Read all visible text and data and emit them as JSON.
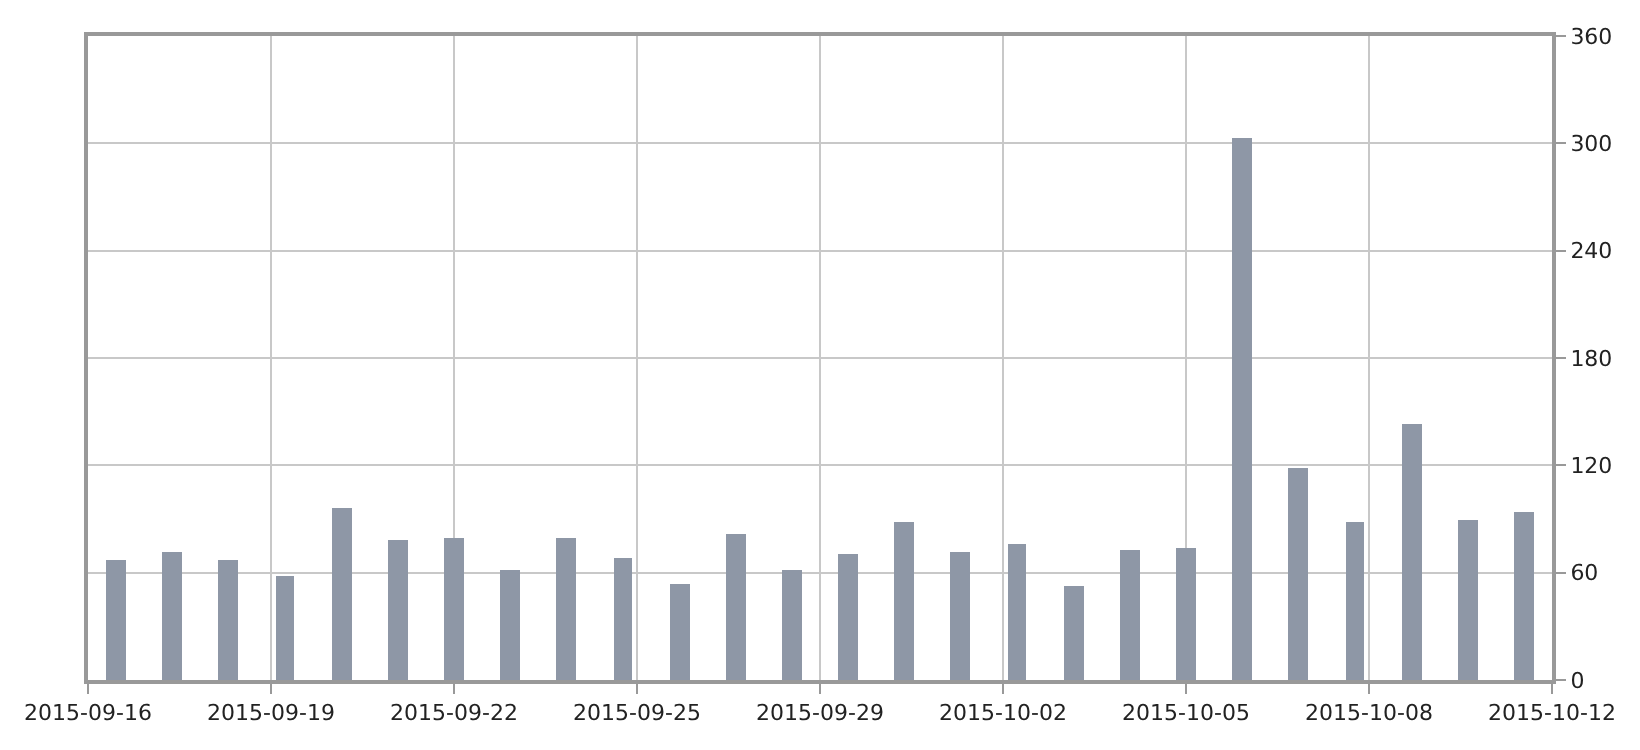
{
  "chart_data": {
    "type": "bar",
    "x": [
      "2015-09-16T12:00",
      "2015-09-17T12:00",
      "2015-09-18T12:00",
      "2015-09-19T12:00",
      "2015-09-20T12:00",
      "2015-09-21T12:00",
      "2015-09-22T12:00",
      "2015-09-23T12:00",
      "2015-09-24T12:00",
      "2015-09-25T12:00",
      "2015-09-26T12:00",
      "2015-09-27T12:00",
      "2015-09-28T12:00",
      "2015-09-29T12:00",
      "2015-09-30T12:00",
      "2015-10-01T12:00",
      "2015-10-02T12:00",
      "2015-10-03T12:00",
      "2015-10-04T12:00",
      "2015-10-05T12:00",
      "2015-10-06T12:00",
      "2015-10-07T12:00",
      "2015-10-08T12:00",
      "2015-10-09T12:00",
      "2015-10-10T12:00",
      "2015-10-11T12:00"
    ],
    "values": [
      67,
      72,
      67,
      58,
      96,
      78,
      79,
      62,
      79,
      68,
      54,
      82,
      61,
      70,
      88,
      72,
      76,
      52,
      73,
      74,
      303,
      119,
      88,
      143,
      90,
      94
    ],
    "color": "#8e97a6",
    "xlim": [
      "2015-09-16",
      "2015-10-12"
    ],
    "xticks": [
      {
        "value": "2015-09-16",
        "label": "2015-09-16"
      },
      {
        "value": "2015-09-19T06:00",
        "label": "2015-09-19"
      },
      {
        "value": "2015-09-22T12:00",
        "label": "2015-09-22"
      },
      {
        "value": "2015-09-25T18:00",
        "label": "2015-09-25"
      },
      {
        "value": "2015-09-29",
        "label": "2015-09-29"
      },
      {
        "value": "2015-10-02T06:00",
        "label": "2015-10-02"
      },
      {
        "value": "2015-10-05T12:00",
        "label": "2015-10-05"
      },
      {
        "value": "2015-10-08T18:00",
        "label": "2015-10-08"
      },
      {
        "value": "2015-10-12",
        "label": "2015-10-12"
      }
    ],
    "ylim": [
      0,
      360
    ],
    "yticks": [
      0,
      60,
      120,
      180,
      240,
      300,
      360
    ],
    "grid": true,
    "legend": false
  }
}
